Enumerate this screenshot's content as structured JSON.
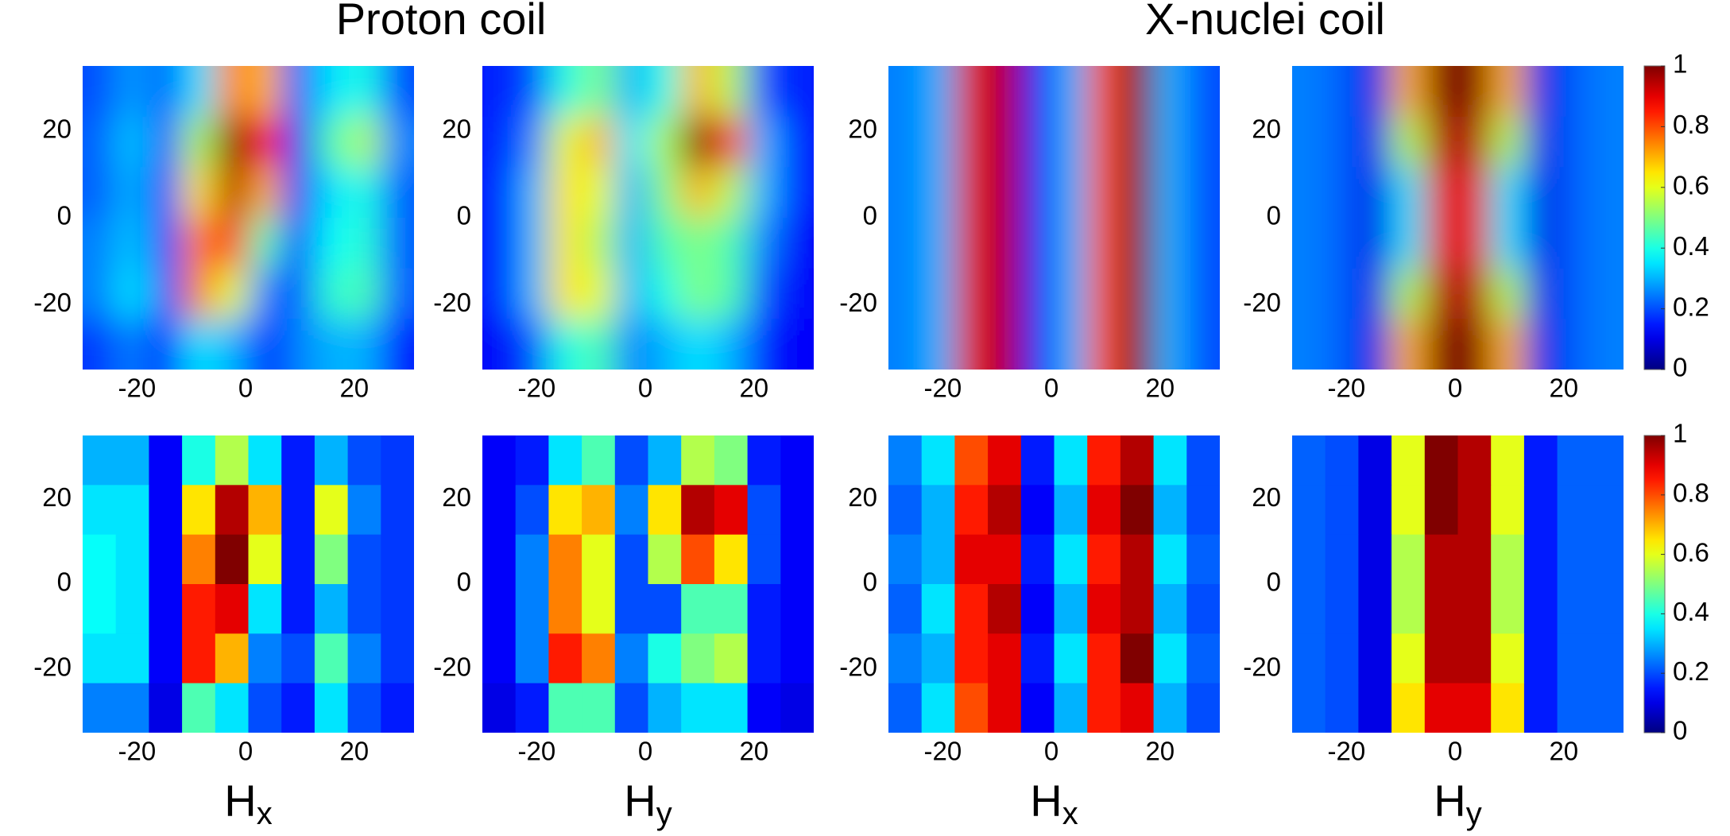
{
  "headers": [
    "Proton coil",
    "X-nuclei coil"
  ],
  "column_labels": [
    {
      "symbol": "H",
      "subscript": "x"
    },
    {
      "symbol": "H",
      "subscript": "y"
    },
    {
      "symbol": "H",
      "subscript": "x"
    },
    {
      "symbol": "H",
      "subscript": "y"
    }
  ],
  "chart_data": [
    {
      "type": "heatmap",
      "colormap": "jet",
      "smooth": true,
      "xlim": [
        -30,
        31
      ],
      "ylim": [
        -35,
        35
      ],
      "xticks": [
        -20,
        0,
        20
      ],
      "yticks": [
        -20,
        0,
        20
      ],
      "clim": [
        0,
        1
      ],
      "z": [
        [
          0.2,
          0.28,
          0.22,
          0.35,
          0.75,
          0.7,
          0.2,
          0.35,
          0.4,
          0.2
        ],
        [
          0.22,
          0.32,
          0.2,
          0.55,
          1.0,
          0.85,
          0.15,
          0.45,
          0.55,
          0.25
        ],
        [
          0.22,
          0.3,
          0.18,
          0.65,
          0.95,
          0.7,
          0.12,
          0.35,
          0.4,
          0.22
        ],
        [
          0.25,
          0.32,
          0.18,
          0.75,
          0.85,
          0.45,
          0.15,
          0.38,
          0.42,
          0.22
        ],
        [
          0.25,
          0.35,
          0.2,
          0.75,
          0.6,
          0.25,
          0.2,
          0.42,
          0.45,
          0.22
        ],
        [
          0.18,
          0.25,
          0.15,
          0.35,
          0.3,
          0.15,
          0.25,
          0.3,
          0.3,
          0.15
        ]
      ]
    },
    {
      "type": "heatmap",
      "colormap": "jet",
      "smooth": true,
      "xlim": [
        -30,
        31
      ],
      "ylim": [
        -35,
        35
      ],
      "xticks": [
        -20,
        0,
        20
      ],
      "yticks": [
        -20,
        0,
        20
      ],
      "clim": [
        0,
        1
      ],
      "z": [
        [
          0.15,
          0.2,
          0.4,
          0.5,
          0.3,
          0.4,
          0.7,
          0.55,
          0.2,
          0.15
        ],
        [
          0.15,
          0.25,
          0.6,
          0.7,
          0.35,
          0.55,
          1.0,
          0.8,
          0.3,
          0.15
        ],
        [
          0.15,
          0.3,
          0.65,
          0.6,
          0.3,
          0.5,
          0.7,
          0.55,
          0.3,
          0.15
        ],
        [
          0.15,
          0.3,
          0.65,
          0.55,
          0.3,
          0.45,
          0.5,
          0.45,
          0.25,
          0.12
        ],
        [
          0.15,
          0.3,
          0.65,
          0.6,
          0.3,
          0.4,
          0.5,
          0.45,
          0.2,
          0.12
        ],
        [
          0.12,
          0.2,
          0.4,
          0.45,
          0.25,
          0.3,
          0.35,
          0.3,
          0.15,
          0.12
        ]
      ]
    },
    {
      "type": "heatmap",
      "colormap": "jet",
      "smooth": true,
      "xlim": [
        -30,
        31
      ],
      "ylim": [
        -35,
        35
      ],
      "xticks": [
        -20,
        0,
        20
      ],
      "yticks": [
        -20,
        0,
        20
      ],
      "clim": [
        0,
        1
      ],
      "z": [
        [
          0.25,
          0.3,
          0.9,
          0.95,
          0.15,
          0.3,
          0.8,
          1.0,
          0.3,
          0.2
        ],
        [
          0.25,
          0.3,
          0.9,
          0.95,
          0.15,
          0.3,
          0.8,
          1.0,
          0.3,
          0.2
        ],
        [
          0.25,
          0.3,
          0.9,
          0.95,
          0.15,
          0.3,
          0.8,
          1.0,
          0.3,
          0.2
        ],
        [
          0.25,
          0.3,
          0.9,
          0.95,
          0.15,
          0.3,
          0.8,
          1.0,
          0.3,
          0.2
        ],
        [
          0.25,
          0.3,
          0.9,
          0.95,
          0.15,
          0.3,
          0.8,
          1.0,
          0.3,
          0.2
        ],
        [
          0.25,
          0.3,
          0.9,
          0.95,
          0.15,
          0.3,
          0.8,
          1.0,
          0.3,
          0.2
        ]
      ]
    },
    {
      "type": "heatmap",
      "colormap": "jet",
      "smooth": true,
      "xlim": [
        -30,
        31
      ],
      "ylim": [
        -35,
        35
      ],
      "xticks": [
        -20,
        0,
        20
      ],
      "yticks": [
        -20,
        0,
        20
      ],
      "clim": [
        0,
        1
      ],
      "colorbar": {
        "ticks": [
          0,
          0.2,
          0.4,
          0.6,
          0.8,
          1
        ]
      },
      "z": [
        [
          0.25,
          0.22,
          0.1,
          0.7,
          1.0,
          1.0,
          0.7,
          0.1,
          0.22,
          0.25
        ],
        [
          0.25,
          0.22,
          0.1,
          0.55,
          0.95,
          0.95,
          0.55,
          0.1,
          0.22,
          0.25
        ],
        [
          0.25,
          0.22,
          0.1,
          0.35,
          0.9,
          0.9,
          0.35,
          0.1,
          0.22,
          0.25
        ],
        [
          0.25,
          0.22,
          0.1,
          0.35,
          0.9,
          0.9,
          0.35,
          0.1,
          0.22,
          0.25
        ],
        [
          0.25,
          0.22,
          0.1,
          0.55,
          0.95,
          0.95,
          0.55,
          0.1,
          0.22,
          0.25
        ],
        [
          0.25,
          0.22,
          0.1,
          0.7,
          1.0,
          1.0,
          0.7,
          0.1,
          0.22,
          0.25
        ]
      ]
    },
    {
      "type": "heatmap",
      "colormap": "jet",
      "smooth": false,
      "xlim": [
        -30,
        31
      ],
      "ylim": [
        -35,
        35
      ],
      "xticks": [
        -20,
        0,
        20
      ],
      "yticks": [
        -20,
        0,
        20
      ],
      "clim": [
        0,
        1
      ],
      "z": [
        [
          0.3,
          0.3,
          0.12,
          0.4,
          0.55,
          0.35,
          0.15,
          0.3,
          0.2,
          0.18
        ],
        [
          0.35,
          0.35,
          0.12,
          0.65,
          0.95,
          0.7,
          0.15,
          0.6,
          0.25,
          0.18
        ],
        [
          0.38,
          0.35,
          0.12,
          0.75,
          1.0,
          0.6,
          0.15,
          0.5,
          0.2,
          0.18
        ],
        [
          0.38,
          0.35,
          0.12,
          0.85,
          0.9,
          0.35,
          0.15,
          0.3,
          0.2,
          0.18
        ],
        [
          0.35,
          0.35,
          0.12,
          0.85,
          0.7,
          0.25,
          0.2,
          0.45,
          0.25,
          0.18
        ],
        [
          0.25,
          0.25,
          0.1,
          0.45,
          0.35,
          0.2,
          0.15,
          0.35,
          0.2,
          0.15
        ]
      ]
    },
    {
      "type": "heatmap",
      "colormap": "jet",
      "smooth": false,
      "xlim": [
        -30,
        31
      ],
      "ylim": [
        -35,
        35
      ],
      "xticks": [
        -20,
        0,
        20
      ],
      "yticks": [
        -20,
        0,
        20
      ],
      "clim": [
        0,
        1
      ],
      "z": [
        [
          0.12,
          0.15,
          0.35,
          0.45,
          0.2,
          0.3,
          0.55,
          0.5,
          0.15,
          0.12
        ],
        [
          0.12,
          0.2,
          0.65,
          0.7,
          0.25,
          0.65,
          0.95,
          0.9,
          0.2,
          0.12
        ],
        [
          0.12,
          0.25,
          0.75,
          0.6,
          0.2,
          0.55,
          0.8,
          0.65,
          0.2,
          0.12
        ],
        [
          0.12,
          0.25,
          0.75,
          0.6,
          0.2,
          0.2,
          0.45,
          0.45,
          0.15,
          0.12
        ],
        [
          0.12,
          0.25,
          0.85,
          0.75,
          0.25,
          0.4,
          0.5,
          0.55,
          0.15,
          0.12
        ],
        [
          0.1,
          0.15,
          0.45,
          0.45,
          0.2,
          0.3,
          0.35,
          0.35,
          0.12,
          0.1
        ]
      ]
    },
    {
      "type": "heatmap",
      "colormap": "jet",
      "smooth": false,
      "xlim": [
        -30,
        31
      ],
      "ylim": [
        -35,
        35
      ],
      "xticks": [
        -20,
        0,
        20
      ],
      "yticks": [
        -20,
        0,
        20
      ],
      "clim": [
        0,
        1
      ],
      "z": [
        [
          0.25,
          0.35,
          0.8,
          0.9,
          0.15,
          0.35,
          0.85,
          0.95,
          0.35,
          0.2
        ],
        [
          0.22,
          0.3,
          0.85,
          0.95,
          0.12,
          0.3,
          0.9,
          1.0,
          0.3,
          0.2
        ],
        [
          0.25,
          0.3,
          0.9,
          0.9,
          0.15,
          0.35,
          0.85,
          0.95,
          0.35,
          0.22
        ],
        [
          0.22,
          0.35,
          0.85,
          0.95,
          0.12,
          0.3,
          0.9,
          0.95,
          0.3,
          0.2
        ],
        [
          0.25,
          0.3,
          0.85,
          0.9,
          0.15,
          0.35,
          0.85,
          1.0,
          0.35,
          0.22
        ],
        [
          0.22,
          0.35,
          0.8,
          0.9,
          0.12,
          0.3,
          0.85,
          0.9,
          0.3,
          0.2
        ]
      ]
    },
    {
      "type": "heatmap",
      "colormap": "jet",
      "smooth": false,
      "xlim": [
        -30,
        31
      ],
      "ylim": [
        -35,
        35
      ],
      "xticks": [
        -20,
        0,
        20
      ],
      "yticks": [
        -20,
        0,
        20
      ],
      "clim": [
        0,
        1
      ],
      "colorbar": {
        "ticks": [
          0,
          0.2,
          0.4,
          0.6,
          0.8,
          1
        ]
      },
      "z": [
        [
          0.22,
          0.2,
          0.1,
          0.6,
          1.0,
          0.95,
          0.6,
          0.15,
          0.22,
          0.22
        ],
        [
          0.22,
          0.2,
          0.1,
          0.6,
          1.0,
          0.95,
          0.6,
          0.15,
          0.22,
          0.22
        ],
        [
          0.22,
          0.2,
          0.1,
          0.55,
          0.95,
          0.95,
          0.55,
          0.15,
          0.22,
          0.22
        ],
        [
          0.22,
          0.2,
          0.1,
          0.55,
          0.95,
          0.95,
          0.55,
          0.15,
          0.22,
          0.22
        ],
        [
          0.22,
          0.2,
          0.1,
          0.6,
          0.95,
          0.95,
          0.6,
          0.15,
          0.22,
          0.22
        ],
        [
          0.22,
          0.2,
          0.1,
          0.65,
          0.9,
          0.9,
          0.65,
          0.15,
          0.22,
          0.22
        ]
      ]
    }
  ]
}
